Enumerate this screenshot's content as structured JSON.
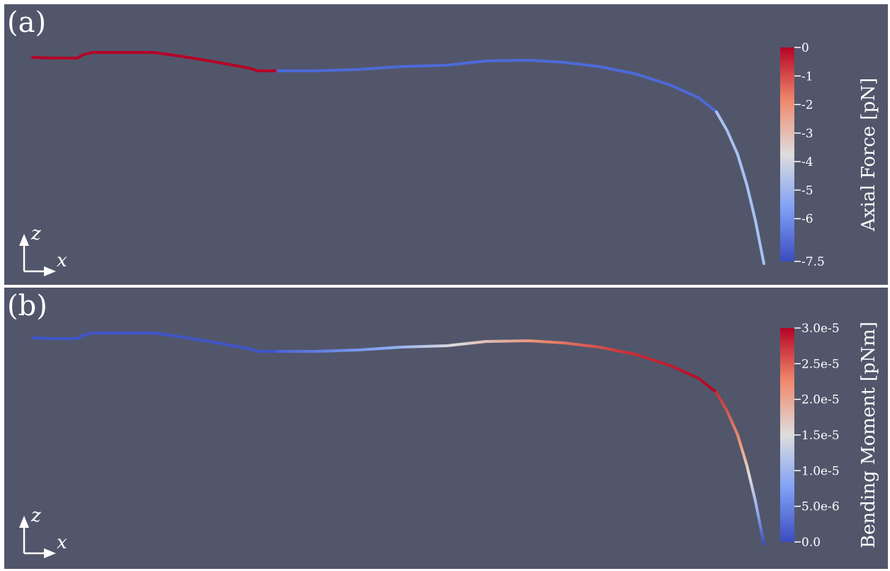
{
  "panels": [
    {
      "id": "a",
      "label": "(a)",
      "colorbar": {
        "title": "Axial Force [pN]",
        "ticks": [
          "0",
          "-1",
          "-2",
          "-3",
          "-4",
          "-5",
          "-6",
          "-7.5"
        ],
        "tick_values": [
          0,
          -1,
          -2,
          -3,
          -4,
          -5,
          -6,
          -7.5
        ],
        "range": [
          -7.5,
          0
        ]
      },
      "axes": {
        "vertical": "z",
        "horizontal": "x"
      }
    },
    {
      "id": "b",
      "label": "(b)",
      "colorbar": {
        "title": "Bending Moment [pNm]",
        "ticks": [
          "3.0e-5",
          "2.5e-5",
          "2.0e-5",
          "1.5e-5",
          "1.0e-5",
          "5.0e-6",
          "0.0"
        ],
        "tick_values": [
          3e-05,
          2.5e-05,
          2e-05,
          1.5e-05,
          1e-05,
          5e-06,
          0.0
        ],
        "range": [
          0.0,
          3e-05
        ]
      },
      "axes": {
        "vertical": "z",
        "horizontal": "x"
      }
    }
  ],
  "colormap": {
    "low": "#3b4cc0",
    "mid": "#dddddd",
    "high": "#b40426"
  }
}
